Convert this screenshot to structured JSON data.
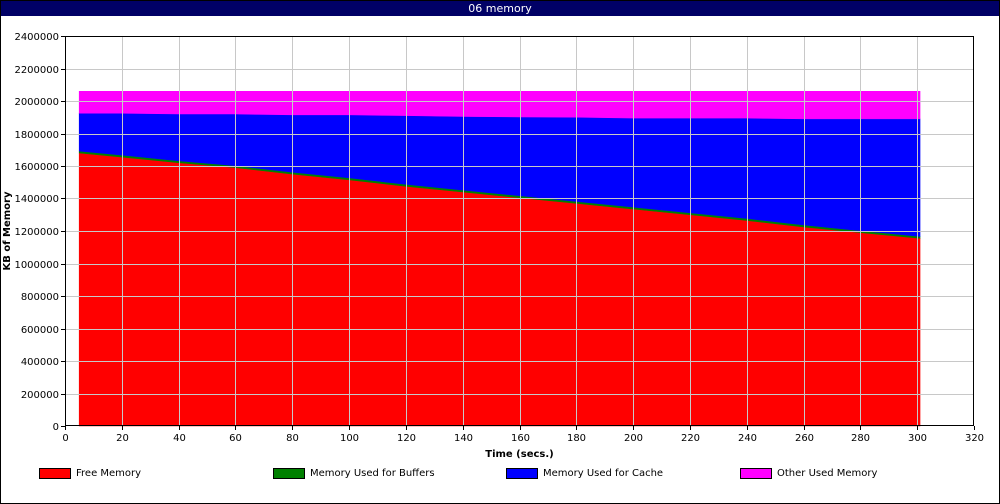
{
  "window": {
    "title": "06 memory",
    "title_bar_color": "#000066"
  },
  "chart_data": {
    "type": "area",
    "stacked": true,
    "title": "06 memory",
    "xlabel": "Time (secs.)",
    "ylabel": "KB of Memory",
    "xlim": [
      0,
      320
    ],
    "ylim": [
      0,
      2400000
    ],
    "x_ticks": [
      0,
      20,
      40,
      60,
      80,
      100,
      120,
      140,
      160,
      180,
      200,
      220,
      240,
      260,
      280,
      300,
      320
    ],
    "y_ticks": [
      0,
      200000,
      400000,
      600000,
      800000,
      1000000,
      1200000,
      1400000,
      1600000,
      1800000,
      2000000,
      2200000,
      2400000
    ],
    "grid": true,
    "legend_position": "bottom",
    "x": [
      5,
      20,
      40,
      60,
      80,
      100,
      120,
      140,
      160,
      180,
      200,
      220,
      240,
      260,
      280,
      301
    ],
    "series": [
      {
        "name": "Free Memory",
        "color": "#ff0000",
        "values": [
          1680000,
          1655000,
          1620000,
          1590000,
          1550000,
          1515000,
          1475000,
          1440000,
          1405000,
          1370000,
          1335000,
          1300000,
          1265000,
          1225000,
          1190000,
          1155000
        ]
      },
      {
        "name": "Memory Used for Buffers",
        "color": "#008000",
        "values": [
          12000,
          12000,
          12000,
          12000,
          12000,
          12000,
          12000,
          12000,
          12000,
          12000,
          12000,
          12000,
          12000,
          12000,
          12000,
          12000
        ]
      },
      {
        "name": "Memory Used for Cache",
        "color": "#0000ff",
        "values": [
          233000,
          258000,
          288000,
          318000,
          353000,
          388000,
          423000,
          453000,
          485000,
          518000,
          548000,
          583000,
          618000,
          653000,
          688000,
          723000
        ]
      },
      {
        "name": "Other Used Memory",
        "color": "#ff00ff",
        "values": [
          135000,
          135000,
          140000,
          140000,
          145000,
          145000,
          150000,
          155000,
          158000,
          160000,
          165000,
          165000,
          165000,
          170000,
          170000,
          170000
        ]
      }
    ]
  }
}
